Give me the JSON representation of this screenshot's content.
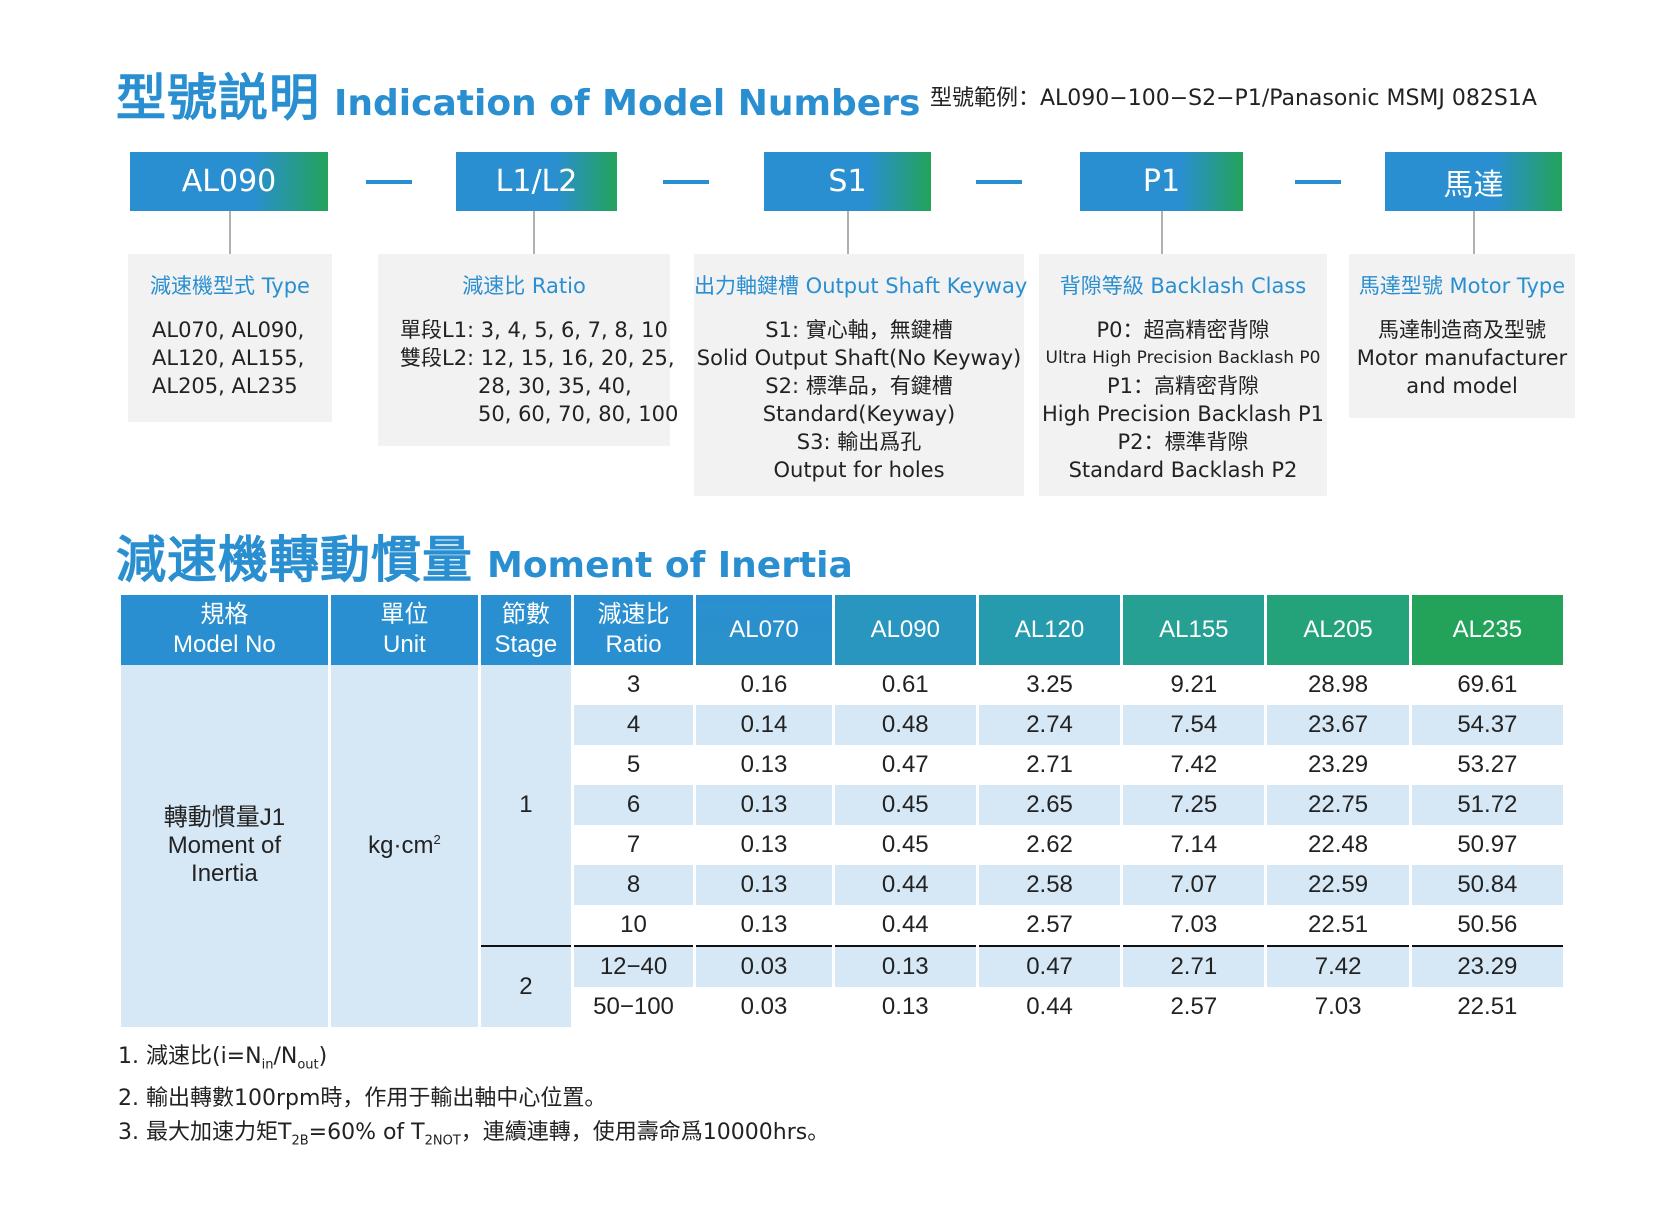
{
  "section1": {
    "title_zh": "型號説明",
    "title_en": "Indication of Model Numbers",
    "example": "型號範例：AL090−100−S2−P1/Panasonic MSMJ 082S1A"
  },
  "codes": [
    "AL090",
    "L1/L2",
    "S1",
    "P1",
    "馬達"
  ],
  "panels": [
    {
      "title": "減速機型式 Type",
      "lines": [
        "AL070, AL090,",
        "AL120, AL155,",
        "AL205, AL235"
      ]
    },
    {
      "title": "減速比 Ratio",
      "lines": [
        "單段L1: 3, 4, 5, 6, 7, 8, 10",
        "雙段L2: 12, 15, 16, 20, 25,",
        "28, 30,  35, 40,",
        "50, 60, 70, 80, 100"
      ]
    },
    {
      "title": "出力軸鍵槽 Output Shaft Keyway",
      "lines": [
        "S1: 實心軸，無鍵槽",
        "Solid Output Shaft(No Keyway)",
        "S2: 標準品，有鍵槽",
        "Standard(Keyway)",
        "S3: 輸出爲孔",
        "Output for holes"
      ]
    },
    {
      "title": "背隙等級 Backlash Class",
      "lines": [
        "P0：超高精密背隙",
        "Ultra High Precision Backlash P0",
        "P1：高精密背隙",
        "High Precision Backlash P1",
        "P2：標準背隙",
        "Standard Backlash P2"
      ]
    },
    {
      "title": "馬達型號 Motor Type",
      "lines": [
        "馬達制造商及型號",
        "Motor manufacturer",
        "and model"
      ]
    }
  ],
  "section2": {
    "title_zh": "減速機轉動慣量",
    "title_en": "Moment of Inertia"
  },
  "table": {
    "headers": {
      "model_zh": "規格",
      "model_en": "Model No",
      "unit_zh": "單位",
      "unit_en": "Unit",
      "stage_zh": "節數",
      "stage_en": "Stage",
      "ratio_zh": "減速比",
      "ratio_en": "Ratio",
      "models": [
        "AL070",
        "AL090",
        "AL120",
        "AL155",
        "AL205",
        "AL235"
      ]
    },
    "row_label_zh": "轉動慣量J1",
    "row_label_en1": "Moment of",
    "row_label_en2": "Inertia",
    "unit": "kg·cm",
    "unit_sup": "2",
    "stage1": "1",
    "stage2": "2",
    "rows": [
      {
        "ratio": "3",
        "values": [
          "0.16",
          "0.61",
          "3.25",
          "9.21",
          "28.98",
          "69.61"
        ]
      },
      {
        "ratio": "4",
        "values": [
          "0.14",
          "0.48",
          "2.74",
          "7.54",
          "23.67",
          "54.37"
        ]
      },
      {
        "ratio": "5",
        "values": [
          "0.13",
          "0.47",
          "2.71",
          "7.42",
          "23.29",
          "53.27"
        ]
      },
      {
        "ratio": "6",
        "values": [
          "0.13",
          "0.45",
          "2.65",
          "7.25",
          "22.75",
          "51.72"
        ]
      },
      {
        "ratio": "7",
        "values": [
          "0.13",
          "0.45",
          "2.62",
          "7.14",
          "22.48",
          "50.97"
        ]
      },
      {
        "ratio": "8",
        "values": [
          "0.13",
          "0.44",
          "2.58",
          "7.07",
          "22.59",
          "50.84"
        ]
      },
      {
        "ratio": "10",
        "values": [
          "0.13",
          "0.44",
          "2.57",
          "7.03",
          "22.51",
          "50.56"
        ]
      },
      {
        "ratio": "12−40",
        "values": [
          "0.03",
          "0.13",
          "0.47",
          "2.71",
          "7.42",
          "23.29"
        ]
      },
      {
        "ratio": "50−100",
        "values": [
          "0.03",
          "0.13",
          "0.44",
          "2.57",
          "7.03",
          "22.51"
        ]
      }
    ]
  },
  "notes": {
    "n1_pre": "1. 減速比(i=N",
    "n1_sub1": "in",
    "n1_mid": "/N",
    "n1_sub2": "out",
    "n1_post": ")",
    "n2": "2. 輸出轉數100rpm時，作用于輸出軸中心位置。",
    "n3_pre": "3. 最大加速力矩T",
    "n3_sub1": "2B",
    "n3_mid": "=60% of T",
    "n3_sub2": "2NOT",
    "n3_post": "，連續連轉，使用壽命爲10000hrs。"
  },
  "colors": {
    "accent_blue": "#2a8fd0",
    "accent_green": "#23a35a",
    "light_blue": "#d6e8f6",
    "panel_gray": "#f2f2f2"
  }
}
